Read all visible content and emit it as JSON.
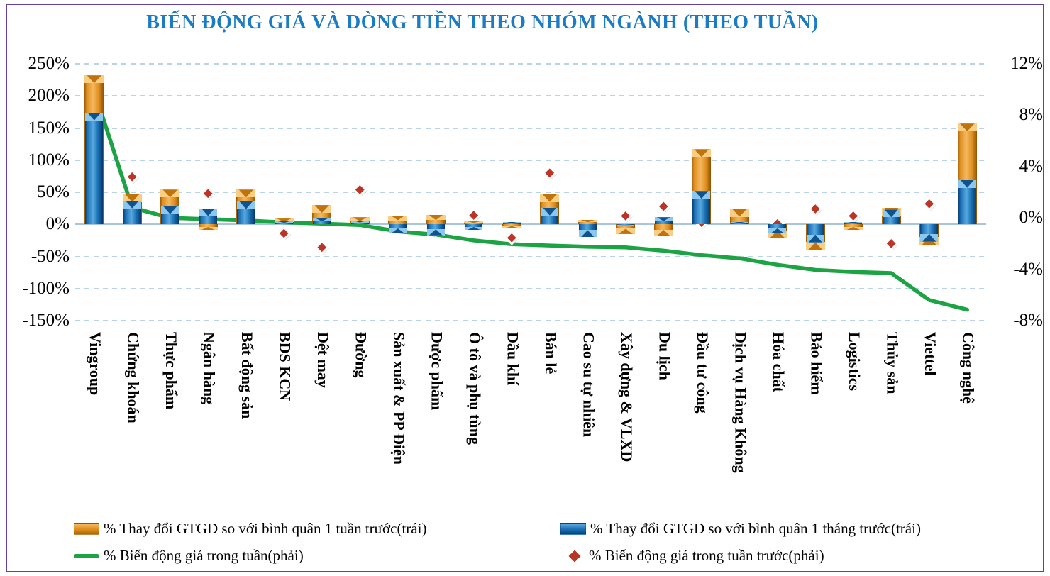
{
  "chart_data": {
    "type": "combo",
    "title": "BIẾN ĐỘNG GIÁ VÀ DÒNG TIỀN THEO NHÓM NGÀNH (THEO TUẦN)",
    "title_color": "#1B7CC3",
    "categories": [
      "Vingroup",
      "Chứng khoán",
      "Thực phẩm",
      "Ngân hàng",
      "Bất động sản",
      "BDS KCN",
      "Dệt may",
      "Đường",
      "Sản xuất & PP Điện",
      "Dược phẩm",
      "Ô tô và phụ tùng",
      "Dầu khí",
      "Bán lẻ",
      "Cao su tự nhiên",
      "Xây dựng & VLXD",
      "Du lịch",
      "Đầu tư công",
      "Dịch vụ Hàng Không",
      "Hóa chất",
      "Bảo hiểm",
      "Logistics",
      "Thủy sản",
      "Viettel",
      "Công nghệ"
    ],
    "series": [
      {
        "name": "% Thay đổi GTGD so với bình quân 1 tuần trước(trái)",
        "type": "bar",
        "axis": "left",
        "color": "#E8941F",
        "values": [
          232,
          47,
          54,
          -9,
          54,
          9,
          30,
          11,
          14,
          15,
          5,
          -6,
          47,
          7,
          -15,
          -19,
          117,
          24,
          -21,
          -40,
          -9,
          26,
          -32,
          157
        ]
      },
      {
        "name": "% Thay đổi GTGD so với bình quân 1 tháng trước(trái)",
        "type": "bar",
        "axis": "left",
        "color": "#1B6FB5",
        "values": [
          174,
          37,
          28,
          25,
          36,
          5,
          10,
          6,
          -14,
          -17,
          -9,
          4,
          26,
          -20,
          -1,
          11,
          52,
          4,
          -14,
          -28,
          4,
          23,
          -27,
          69
        ]
      },
      {
        "name": "% Biến động giá trong tuần(phải)",
        "type": "line",
        "axis": "right",
        "color": "#1CA344",
        "values": [
          9.9,
          0.8,
          0.0,
          -0.1,
          -0.2,
          -0.35,
          -0.45,
          -0.55,
          -1.05,
          -1.3,
          -1.75,
          -2.05,
          -2.15,
          -2.25,
          -2.3,
          -2.55,
          -2.9,
          -3.15,
          -3.65,
          -4.05,
          -4.2,
          -4.3,
          -6.4,
          -7.15
        ]
      },
      {
        "name": "% Biến động giá trong tuần trước(phải)",
        "type": "scatter",
        "marker": "diamond",
        "axis": "right",
        "color": "#BC3425",
        "values": [
          9.0,
          3.2,
          0.45,
          1.9,
          0.6,
          -1.2,
          -2.3,
          2.2,
          -0.55,
          -0.9,
          0.2,
          -1.55,
          3.5,
          -0.7,
          0.15,
          0.9,
          -0.35,
          0.15,
          -0.45,
          0.7,
          0.15,
          -2.0,
          1.1,
          0.65
        ]
      }
    ],
    "left_axis": {
      "min": -150,
      "max": 250,
      "step": 50,
      "ticks": [
        "250%",
        "200%",
        "150%",
        "100%",
        "50%",
        "0%",
        "-50%",
        "-100%",
        "-150%"
      ]
    },
    "right_axis": {
      "min": -8,
      "max": 12,
      "step": 4,
      "ticks": [
        "12%",
        "8%",
        "4%",
        "0%",
        "-4%",
        "-8%"
      ]
    },
    "grid": true,
    "legend_position": "bottom"
  }
}
